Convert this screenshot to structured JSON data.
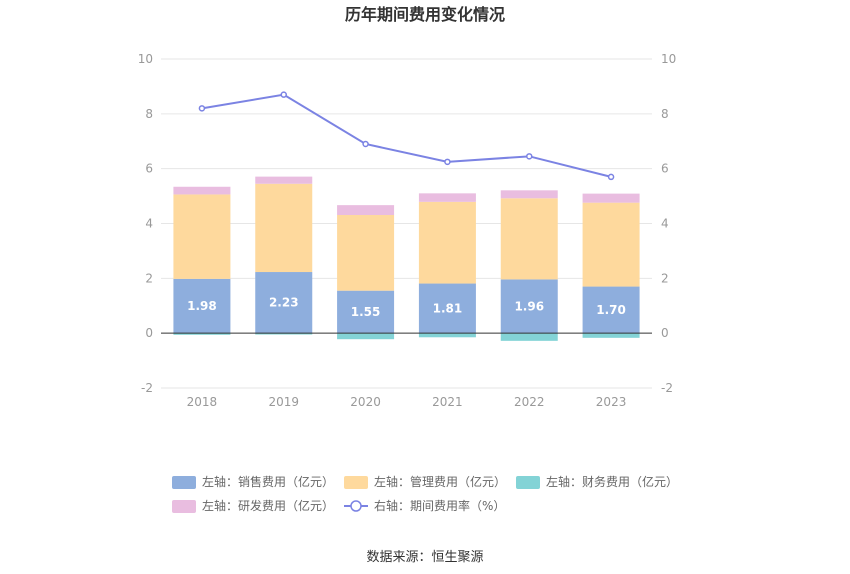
{
  "chart_data": {
    "type": "bar",
    "title": "历年期间费用变化情况",
    "categories": [
      "2018",
      "2019",
      "2020",
      "2021",
      "2022",
      "2023"
    ],
    "stacked": true,
    "left_axis": {
      "min": -2,
      "max": 10,
      "ticks": [
        "-2",
        "0",
        "2",
        "4",
        "6",
        "8",
        "10"
      ]
    },
    "right_axis": {
      "min": -2,
      "max": 10,
      "ticks": [
        "-2",
        "0",
        "2",
        "4",
        "6",
        "8",
        "10"
      ]
    },
    "grid": true,
    "legend_position": "bottom",
    "series": [
      {
        "name": "左轴：销售费用（亿元）",
        "color": "#8eaedd",
        "axis": "left",
        "kind": "bar",
        "values": [
          1.98,
          2.23,
          1.55,
          1.81,
          1.96,
          1.7
        ],
        "labels": [
          "1.98",
          "2.23",
          "1.55",
          "1.81",
          "1.96",
          "1.70"
        ]
      },
      {
        "name": "左轴：管理费用（亿元）",
        "color": "#fed99d",
        "axis": "left",
        "kind": "bar",
        "values": [
          3.08,
          3.22,
          2.76,
          2.98,
          2.96,
          3.06
        ]
      },
      {
        "name": "左轴：财务费用（亿元）",
        "color": "#83d3d6",
        "axis": "left",
        "kind": "bar",
        "values": [
          -0.06,
          -0.05,
          -0.22,
          -0.15,
          -0.28,
          -0.17
        ]
      },
      {
        "name": "左轴：研发费用（亿元）",
        "color": "#e9bde0",
        "axis": "left",
        "kind": "bar",
        "values": [
          0.28,
          0.26,
          0.36,
          0.31,
          0.29,
          0.33
        ]
      },
      {
        "name": "右轴：期间费用率（%）",
        "color": "#7b83e3",
        "axis": "right",
        "kind": "line",
        "values": [
          8.2,
          8.7,
          6.9,
          6.25,
          6.45,
          5.7
        ]
      }
    ]
  },
  "source": "数据来源：恒生聚源"
}
